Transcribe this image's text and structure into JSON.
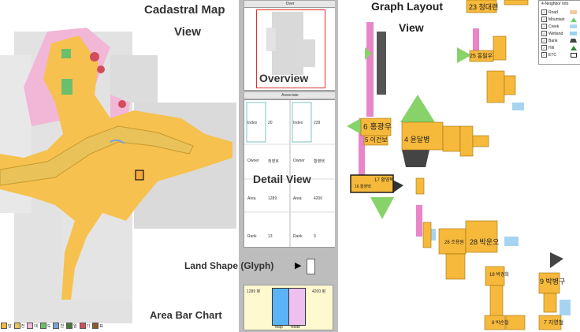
{
  "labels": {
    "cadastral_title_line1": "Cadastral Map",
    "cadastral_title_line2": "View",
    "graph_title_line1": "Graph Layout",
    "graph_title_line2": "View",
    "overview": "Overview",
    "detail_view": "Detail View",
    "land_shape": "Land Shape (Glyph)",
    "area_bar_chart": "Area Bar Chart",
    "arrow": "▶"
  },
  "panels": {
    "over_header": "Over",
    "associate_header": "Associate"
  },
  "detail": {
    "left": {
      "index_label": "Index",
      "index_value": "20",
      "owner_label": "Owner",
      "owner_value": "최영호",
      "area_label": "Area",
      "area_value": "1289",
      "rank_label": "Rank",
      "rank_value": "13"
    },
    "right": {
      "index_label": "Index",
      "index_value": "229",
      "owner_label": "Owner",
      "owner_value": "황영택",
      "area_label": "Area",
      "area_value": "4200",
      "rank_label": "Rank",
      "rank_value": "3"
    }
  },
  "bar_chart": {
    "left_value": "1289 평",
    "right_value": "4200 평",
    "map_label": "Map",
    "node_label": "Node"
  },
  "legend": {
    "title": "4-Neighbor Info",
    "items": [
      {
        "label": "Road",
        "color": "#f4c9a2"
      },
      {
        "label": "Mountain",
        "color": "#6fcf6f"
      },
      {
        "label": "Creek",
        "color": "#aad8f2"
      },
      {
        "label": "Wetland",
        "color": "#9ad1ef"
      },
      {
        "label": "Bank",
        "color": "#444444"
      },
      {
        "label": "Hill",
        "color": "#2e8b2e"
      },
      {
        "label": "ETC",
        "color": "#222222"
      }
    ]
  },
  "map_legend": [
    "답",
    "전",
    "대",
    "도",
    "천",
    "임",
    "기",
    "묘"
  ],
  "graph_nodes": [
    {
      "label": "23 청대련"
    },
    {
      "label": "25 홍필우"
    },
    {
      "label": "6 홍광우"
    },
    {
      "label": "5 이건보"
    },
    {
      "label": "4 윤달병"
    },
    {
      "label": "16 황영택"
    },
    {
      "label": "17 황영택"
    },
    {
      "label": "26 조용원"
    },
    {
      "label": "28 박운오"
    },
    {
      "label": "18 박경희"
    },
    {
      "label": "9 박병구"
    },
    {
      "label": "8 박순철"
    },
    {
      "label": "7 지영철"
    }
  ],
  "colors": {
    "parcel": "#f6b93b",
    "road": "#e985c9",
    "mountain": "#87d36a",
    "water": "#a6d4f0",
    "panel_bg": "#bdbdbd"
  }
}
